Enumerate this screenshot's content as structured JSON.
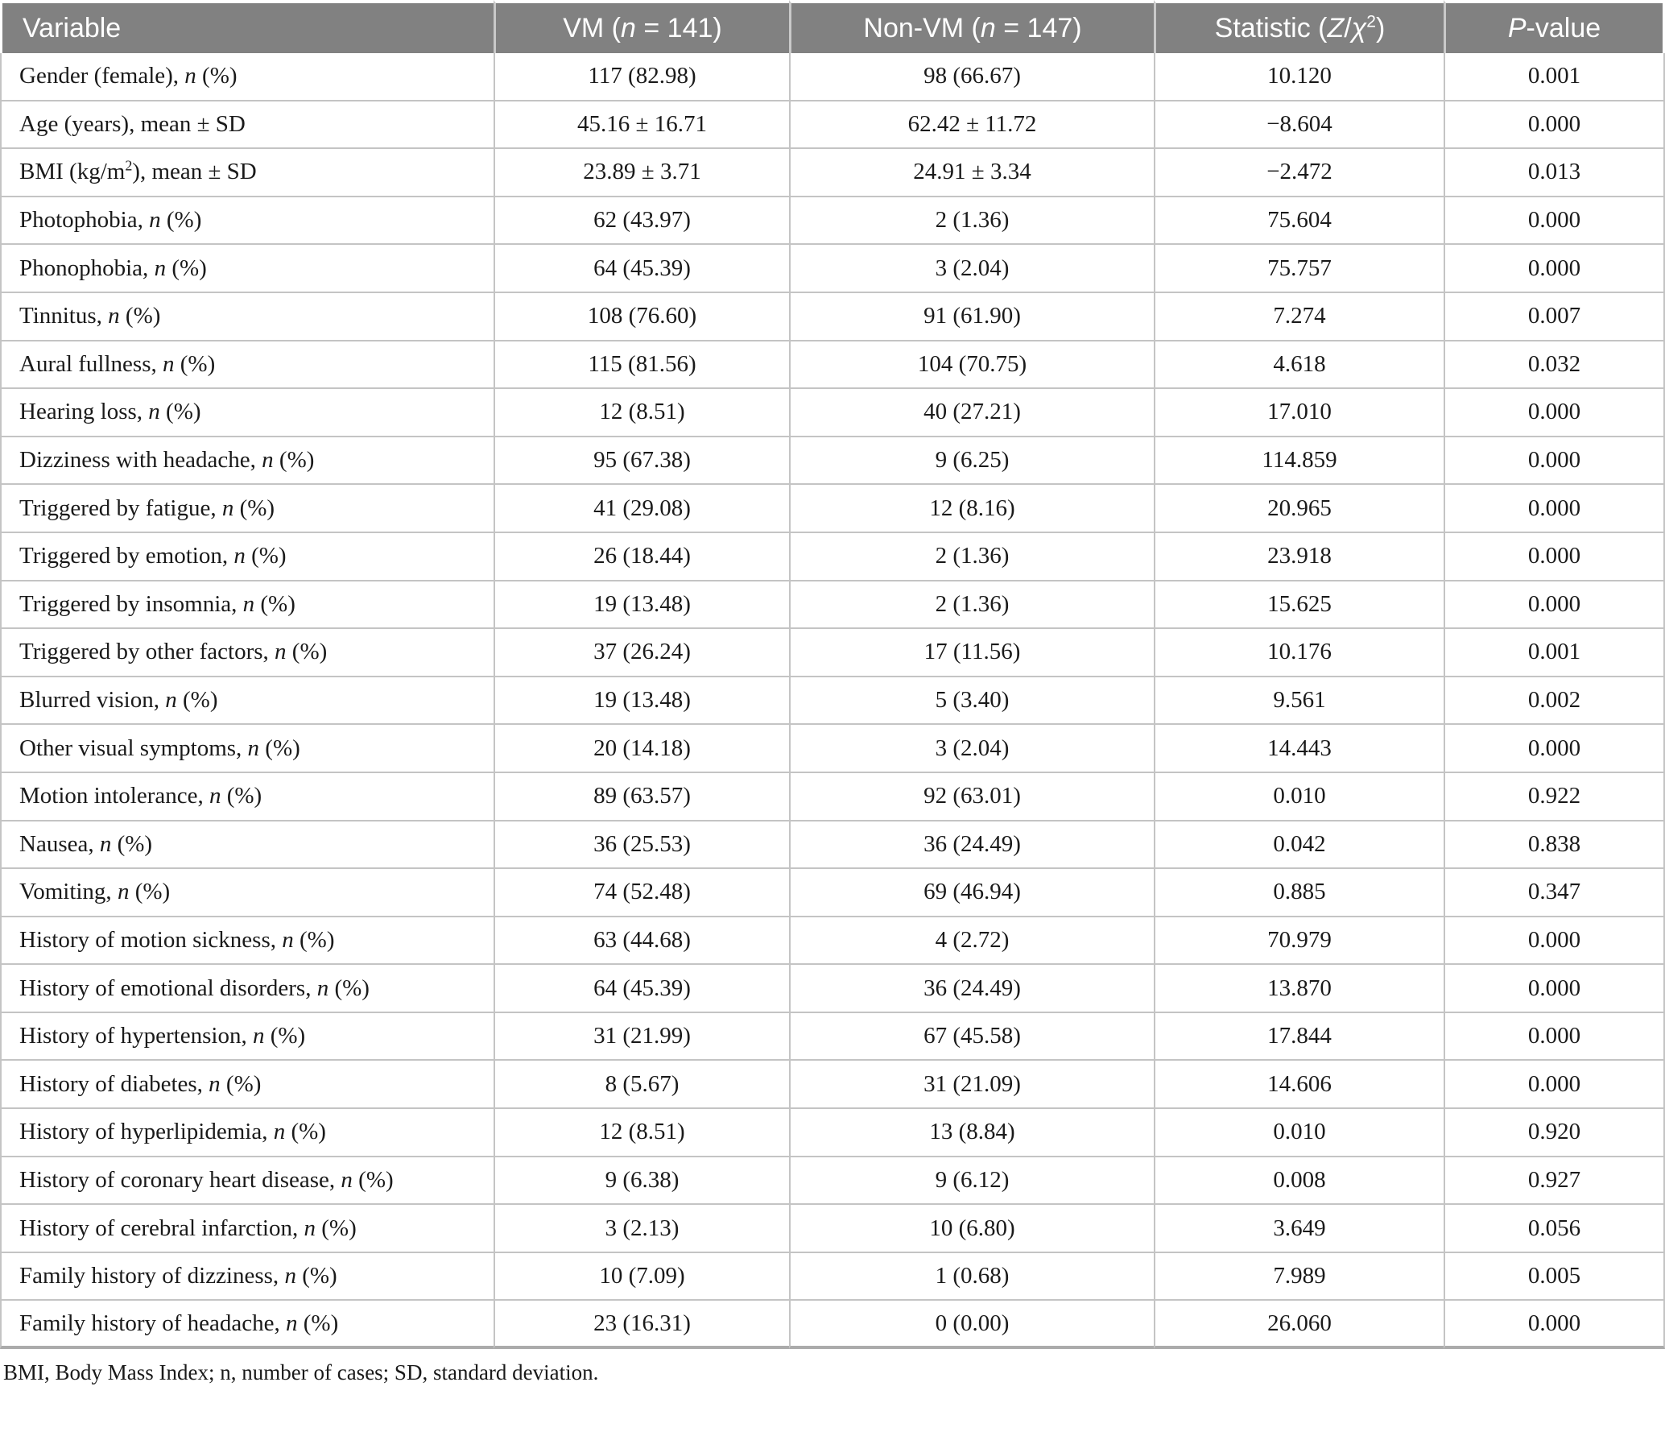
{
  "table": {
    "columns": [
      {
        "id": "variable",
        "html": "Variable"
      },
      {
        "id": "vm",
        "html": "VM (<i>n</i> = 141)"
      },
      {
        "id": "non_vm",
        "html": "Non-VM (<i>n</i> = 147)"
      },
      {
        "id": "statistic",
        "html": "Statistic (<i>Z</i>/<i>χ</i><sup>2</sup>)"
      },
      {
        "id": "p_value",
        "html": "<i>P</i>-value"
      }
    ],
    "rows": [
      {
        "variable": "Gender (female), <i>n</i> (%)",
        "vm": "117 (82.98)",
        "non_vm": "98 (66.67)",
        "statistic": "10.120",
        "p_value": "0.001"
      },
      {
        "variable": "Age (years), mean ± SD",
        "vm": "45.16 ± 16.71",
        "non_vm": "62.42 ± 11.72",
        "statistic": "−8.604",
        "p_value": "0.000"
      },
      {
        "variable": "BMI (kg/m<sup>2</sup>), mean ± SD",
        "vm": "23.89 ± 3.71",
        "non_vm": "24.91 ± 3.34",
        "statistic": "−2.472",
        "p_value": "0.013"
      },
      {
        "variable": "Photophobia, <i>n</i> (%)",
        "vm": "62 (43.97)",
        "non_vm": "2 (1.36)",
        "statistic": "75.604",
        "p_value": "0.000"
      },
      {
        "variable": "Phonophobia, <i>n</i> (%)",
        "vm": "64 (45.39)",
        "non_vm": "3 (2.04)",
        "statistic": "75.757",
        "p_value": "0.000"
      },
      {
        "variable": "Tinnitus, <i>n</i> (%)",
        "vm": "108 (76.60)",
        "non_vm": "91 (61.90)",
        "statistic": "7.274",
        "p_value": "0.007"
      },
      {
        "variable": "Aural fullness, <i>n</i> (%)",
        "vm": "115 (81.56)",
        "non_vm": "104 (70.75)",
        "statistic": "4.618",
        "p_value": "0.032"
      },
      {
        "variable": "Hearing loss, <i>n</i> (%)",
        "vm": "12 (8.51)",
        "non_vm": "40 (27.21)",
        "statistic": "17.010",
        "p_value": "0.000"
      },
      {
        "variable": "Dizziness with headache, <i>n</i> (%)",
        "vm": "95 (67.38)",
        "non_vm": "9 (6.25)",
        "statistic": "114.859",
        "p_value": "0.000"
      },
      {
        "variable": "Triggered by fatigue, <i>n</i> (%)",
        "vm": "41 (29.08)",
        "non_vm": "12 (8.16)",
        "statistic": "20.965",
        "p_value": "0.000"
      },
      {
        "variable": "Triggered by emotion, <i>n</i> (%)",
        "vm": "26 (18.44)",
        "non_vm": "2 (1.36)",
        "statistic": "23.918",
        "p_value": "0.000"
      },
      {
        "variable": "Triggered by insomnia, <i>n</i> (%)",
        "vm": "19 (13.48)",
        "non_vm": "2 (1.36)",
        "statistic": "15.625",
        "p_value": "0.000"
      },
      {
        "variable": "Triggered by other factors, <i>n</i> (%)",
        "vm": "37 (26.24)",
        "non_vm": "17 (11.56)",
        "statistic": "10.176",
        "p_value": "0.001"
      },
      {
        "variable": "Blurred vision, <i>n</i> (%)",
        "vm": "19 (13.48)",
        "non_vm": "5 (3.40)",
        "statistic": "9.561",
        "p_value": "0.002"
      },
      {
        "variable": "Other visual symptoms, <i>n</i> (%)",
        "vm": "20 (14.18)",
        "non_vm": "3 (2.04)",
        "statistic": "14.443",
        "p_value": "0.000"
      },
      {
        "variable": "Motion intolerance, <i>n</i> (%)",
        "vm": "89 (63.57)",
        "non_vm": "92 (63.01)",
        "statistic": "0.010",
        "p_value": "0.922"
      },
      {
        "variable": "Nausea, <i>n</i> (%)",
        "vm": "36 (25.53)",
        "non_vm": "36 (24.49)",
        "statistic": "0.042",
        "p_value": "0.838"
      },
      {
        "variable": "Vomiting, <i>n</i> (%)",
        "vm": "74 (52.48)",
        "non_vm": "69 (46.94)",
        "statistic": "0.885",
        "p_value": "0.347"
      },
      {
        "variable": "History of motion sickness, <i>n</i> (%)",
        "vm": "63 (44.68)",
        "non_vm": "4 (2.72)",
        "statistic": "70.979",
        "p_value": "0.000"
      },
      {
        "variable": "History of emotional disorders, <i>n</i> (%)",
        "vm": "64 (45.39)",
        "non_vm": "36 (24.49)",
        "statistic": "13.870",
        "p_value": "0.000"
      },
      {
        "variable": "History of hypertension, <i>n</i> (%)",
        "vm": "31 (21.99)",
        "non_vm": "67 (45.58)",
        "statistic": "17.844",
        "p_value": "0.000"
      },
      {
        "variable": "History of diabetes, <i>n</i> (%)",
        "vm": "8 (5.67)",
        "non_vm": "31 (21.09)",
        "statistic": "14.606",
        "p_value": "0.000"
      },
      {
        "variable": "History of hyperlipidemia, <i>n</i> (%)",
        "vm": "12 (8.51)",
        "non_vm": "13 (8.84)",
        "statistic": "0.010",
        "p_value": "0.920"
      },
      {
        "variable": "History of coronary heart disease, <i>n</i> (%)",
        "vm": "9 (6.38)",
        "non_vm": "9 (6.12)",
        "statistic": "0.008",
        "p_value": "0.927"
      },
      {
        "variable": "History of cerebral infarction, <i>n</i> (%)",
        "vm": "3 (2.13)",
        "non_vm": "10 (6.80)",
        "statistic": "3.649",
        "p_value": "0.056"
      },
      {
        "variable": "Family history of dizziness, <i>n</i> (%)",
        "vm": "10 (7.09)",
        "non_vm": "1 (0.68)",
        "statistic": "7.989",
        "p_value": "0.005"
      },
      {
        "variable": "Family history of headache, <i>n</i> (%)",
        "vm": "23 (16.31)",
        "non_vm": "0 (0.00)",
        "statistic": "26.060",
        "p_value": "0.000"
      }
    ]
  },
  "footnote": "BMI, Body Mass Index; n, number of cases; SD, standard deviation.",
  "colors": {
    "header_bg": "#818181",
    "header_text": "#ffffff",
    "header_sep": "#c9c9c9",
    "grid": "#c4c4c4",
    "bottom_border": "#ababab",
    "body_text": "#1a1a1a",
    "page_bg": "#ffffff"
  }
}
